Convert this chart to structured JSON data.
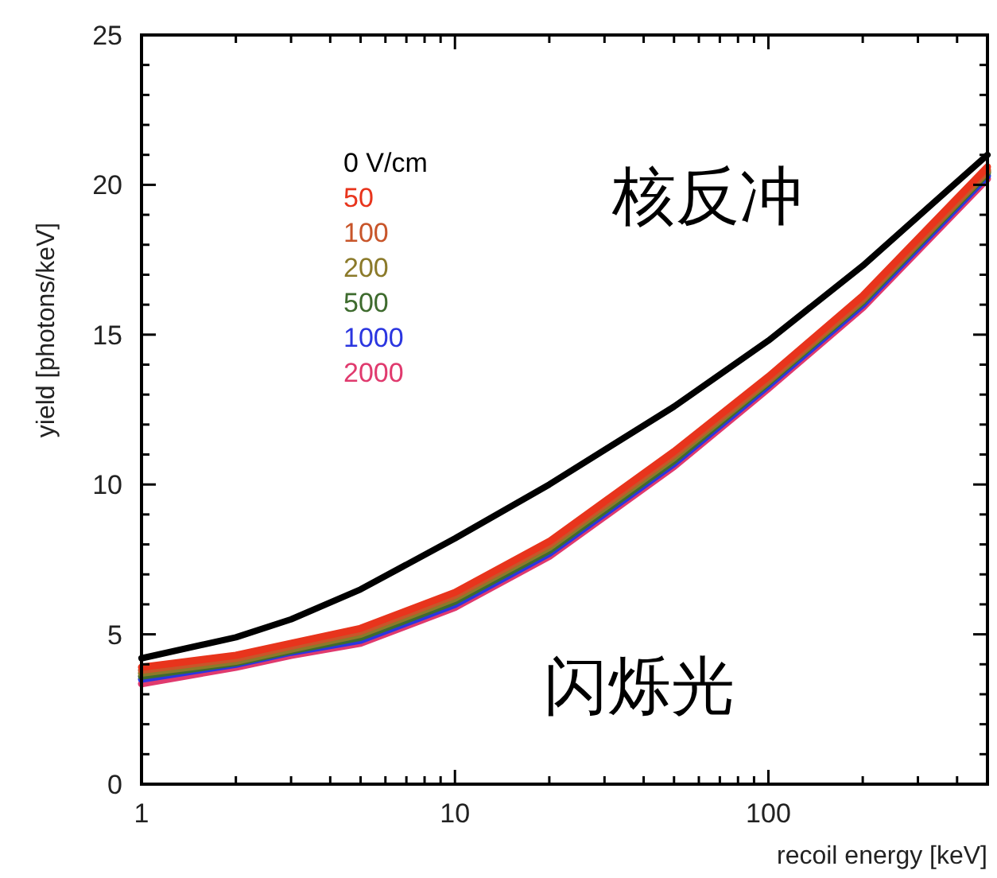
{
  "chart_data": {
    "type": "line",
    "xlabel": "recoil energy [keV]",
    "ylabel": "yield [photons/keV]",
    "log": "x",
    "grid": false,
    "legend": "top left",
    "marker": "none",
    "line_style": "solid",
    "x": [
      1,
      2,
      3,
      5,
      10,
      20,
      50,
      100,
      200,
      500
    ],
    "xlim": [
      1,
      500
    ],
    "xticks": [
      1,
      {
        "value": 2,
        "label": null
      },
      {
        "value": 3,
        "label": null
      },
      {
        "value": 4,
        "label": null
      },
      {
        "value": 5,
        "label": null
      },
      {
        "value": 6,
        "label": null
      },
      {
        "value": 7,
        "label": null
      },
      {
        "value": 8,
        "label": null
      },
      {
        "value": 9,
        "label": null
      },
      10,
      {
        "value": 20,
        "label": null
      },
      {
        "value": 30,
        "label": null
      },
      {
        "value": 40,
        "label": null
      },
      {
        "value": 50,
        "label": null
      },
      {
        "value": 60,
        "label": null
      },
      {
        "value": 70,
        "label": null
      },
      {
        "value": 80,
        "label": null
      },
      {
        "value": 90,
        "label": null
      },
      100,
      {
        "value": 200,
        "label": null
      },
      {
        "value": 300,
        "label": null
      },
      {
        "value": 400,
        "label": null
      }
    ],
    "ylim": [
      0,
      25
    ],
    "yticks": [
      0,
      {
        "value": 1,
        "label": null
      },
      {
        "value": 2,
        "label": null
      },
      {
        "value": 3,
        "label": null
      },
      {
        "value": 4,
        "label": null
      },
      5,
      {
        "value": 6,
        "label": null
      },
      {
        "value": 7,
        "label": null
      },
      {
        "value": 8,
        "label": null
      },
      {
        "value": 9,
        "label": null
      },
      10,
      {
        "value": 11,
        "label": null
      },
      {
        "value": 12,
        "label": null
      },
      {
        "value": 13,
        "label": null
      },
      {
        "value": 14,
        "label": null
      },
      15,
      {
        "value": 16,
        "label": null
      },
      {
        "value": 17,
        "label": null
      },
      {
        "value": 18,
        "label": null
      },
      {
        "value": 19,
        "label": null
      },
      20,
      {
        "value": 21,
        "label": null
      },
      {
        "value": 22,
        "label": null
      },
      {
        "value": 23,
        "label": null
      },
      {
        "value": 24,
        "label": null
      },
      25
    ],
    "series": [
      {
        "name": "0 V/cm",
        "color": "#000000",
        "values": [
          4.2,
          4.9,
          5.5,
          6.5,
          8.2,
          10.0,
          12.6,
          14.8,
          17.3,
          21.0
        ]
      },
      {
        "name": "50",
        "color": "#e8341c",
        "values": [
          3.9,
          4.3,
          4.7,
          5.2,
          6.4,
          8.1,
          11.1,
          13.6,
          16.3,
          20.6
        ]
      },
      {
        "name": "100",
        "color": "#c8552a",
        "values": [
          3.8,
          4.2,
          4.6,
          5.1,
          6.3,
          8.0,
          11.0,
          13.5,
          16.2,
          20.5
        ]
      },
      {
        "name": "200",
        "color": "#8b7a2a",
        "values": [
          3.7,
          4.1,
          4.5,
          5.0,
          6.2,
          7.9,
          10.9,
          13.45,
          16.15,
          20.45
        ]
      },
      {
        "name": "500",
        "color": "#3e6b2e",
        "values": [
          3.6,
          4.05,
          4.45,
          4.9,
          6.1,
          7.8,
          10.8,
          13.4,
          16.1,
          20.4
        ]
      },
      {
        "name": "1000",
        "color": "#2b36e0",
        "values": [
          3.5,
          4.0,
          4.4,
          4.8,
          6.0,
          7.7,
          10.7,
          13.3,
          16.0,
          20.3
        ]
      },
      {
        "name": "2000",
        "color": "#e03a6e",
        "values": [
          3.35,
          3.9,
          4.3,
          4.7,
          5.9,
          7.6,
          10.6,
          13.2,
          15.9,
          20.2
        ]
      }
    ],
    "annotations": [
      "核反冲",
      "闪烁光"
    ]
  }
}
